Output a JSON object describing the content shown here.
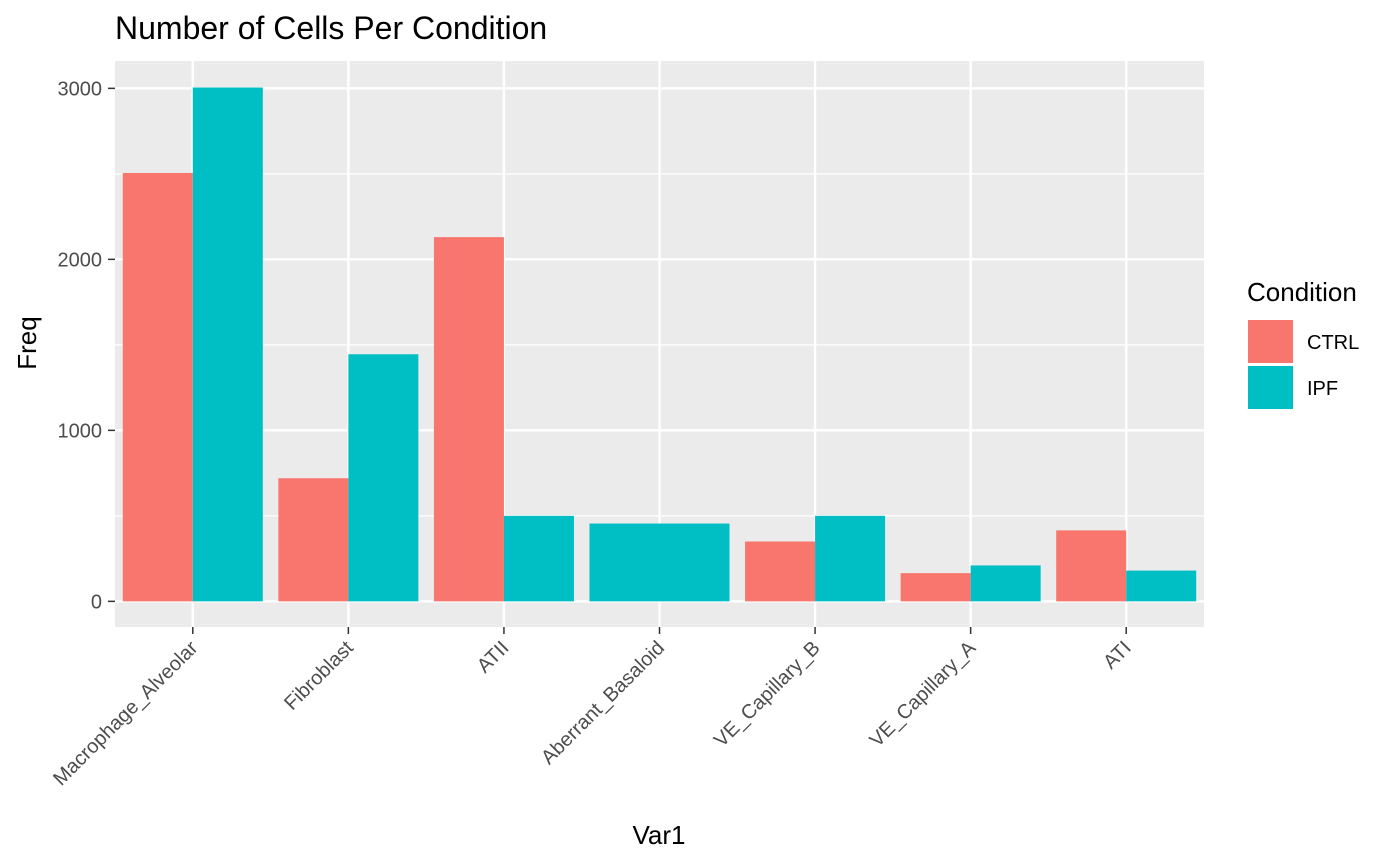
{
  "chart_data": {
    "type": "bar",
    "title": "Number of Cells Per Condition",
    "xlabel": "Var1",
    "ylabel": "Freq",
    "categories": [
      "Macrophage_Alveolar",
      "Fibroblast",
      "ATII",
      "Aberrant_Basaloid",
      "VE_Capillary_B",
      "VE_Capillary_A",
      "ATI"
    ],
    "series": [
      {
        "name": "CTRL",
        "color": "#F8766D",
        "values": [
          2505,
          720,
          2130,
          null,
          350,
          165,
          415
        ]
      },
      {
        "name": "IPF",
        "color": "#00BFC4",
        "values": [
          3005,
          1445,
          500,
          455,
          500,
          210,
          180
        ]
      }
    ],
    "ylim": [
      -150,
      3160
    ],
    "yticks": [
      0,
      1000,
      2000,
      3000
    ],
    "yticks_minor": [
      500,
      1500,
      2500
    ],
    "grid": true,
    "legend": {
      "title": "Condition",
      "position": "right"
    },
    "panel_background": "#EBEBEB",
    "grid_color": "#FFFFFF"
  }
}
